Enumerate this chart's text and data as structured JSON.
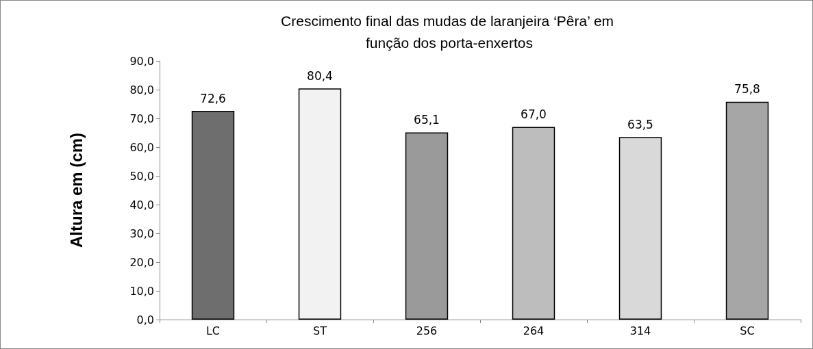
{
  "chart_data": {
    "type": "bar",
    "title": "Crescimento final das mudas de laranjeira ‘Pêra’ em função dos porta-enxertos",
    "ylabel": "Altura em (cm)",
    "categories": [
      "LC",
      "ST",
      "256",
      "264",
      "314",
      "SC"
    ],
    "values": [
      72.6,
      80.4,
      65.1,
      67.0,
      63.5,
      75.8
    ],
    "value_labels": [
      "72,6",
      "80,4",
      "65,1",
      "67,0",
      "63,5",
      "75,8"
    ],
    "colors": [
      "#6e6e6e",
      "#f2f2f2",
      "#9a9a9a",
      "#bdbdbd",
      "#d9d9d9",
      "#a6a6a6"
    ],
    "ylim": [
      0,
      90
    ],
    "yticks": [
      {
        "value": 0,
        "label": "0,0"
      },
      {
        "value": 10,
        "label": "10,0"
      },
      {
        "value": 20,
        "label": "20,0"
      },
      {
        "value": 30,
        "label": "30,0"
      },
      {
        "value": 40,
        "label": "40,0"
      },
      {
        "value": 50,
        "label": "50,0"
      },
      {
        "value": 60,
        "label": "60,0"
      },
      {
        "value": 70,
        "label": "70,0"
      },
      {
        "value": 80,
        "label": "80,0"
      },
      {
        "value": 90,
        "label": "90,0"
      }
    ],
    "grid": false
  }
}
